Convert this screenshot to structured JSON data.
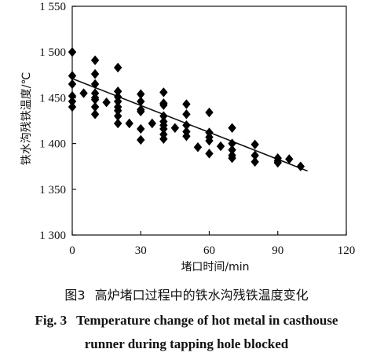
{
  "chart_data": {
    "type": "scatter",
    "xlabel": "堵口时间/min",
    "ylabel": "铁水沟残铁温度/℃",
    "xlim": [
      0,
      120
    ],
    "ylim": [
      1300,
      1550
    ],
    "xticks": [
      0,
      30,
      60,
      90,
      120
    ],
    "xtick_labels": [
      "0",
      "30",
      "60",
      "90",
      "120"
    ],
    "yticks": [
      1300,
      1350,
      1400,
      1450,
      1500,
      1550
    ],
    "ytick_labels": [
      "1 300",
      "1 350",
      "1 400",
      "1 450",
      "1 500",
      "1 550"
    ],
    "grid": false,
    "marker": "diamond",
    "points": [
      [
        0,
        1500
      ],
      [
        0,
        1474
      ],
      [
        0,
        1465
      ],
      [
        0,
        1452
      ],
      [
        0,
        1446
      ],
      [
        0,
        1440
      ],
      [
        5,
        1455
      ],
      [
        10,
        1491
      ],
      [
        10,
        1476
      ],
      [
        10,
        1465
      ],
      [
        10,
        1455
      ],
      [
        10,
        1450
      ],
      [
        10,
        1448
      ],
      [
        10,
        1440
      ],
      [
        10,
        1432
      ],
      [
        15,
        1445
      ],
      [
        20,
        1483
      ],
      [
        20,
        1457
      ],
      [
        20,
        1451
      ],
      [
        20,
        1446
      ],
      [
        20,
        1440
      ],
      [
        20,
        1436
      ],
      [
        20,
        1430
      ],
      [
        20,
        1422
      ],
      [
        25,
        1422
      ],
      [
        30,
        1454
      ],
      [
        30,
        1446
      ],
      [
        30,
        1437
      ],
      [
        30,
        1435
      ],
      [
        30,
        1416
      ],
      [
        30,
        1404
      ],
      [
        35,
        1422
      ],
      [
        40,
        1456
      ],
      [
        40,
        1444
      ],
      [
        40,
        1442
      ],
      [
        40,
        1430
      ],
      [
        40,
        1424
      ],
      [
        40,
        1420
      ],
      [
        40,
        1416
      ],
      [
        40,
        1410
      ],
      [
        40,
        1405
      ],
      [
        45,
        1417
      ],
      [
        50,
        1443
      ],
      [
        50,
        1432
      ],
      [
        50,
        1420
      ],
      [
        50,
        1413
      ],
      [
        50,
        1408
      ],
      [
        55,
        1396
      ],
      [
        60,
        1434
      ],
      [
        60,
        1412
      ],
      [
        60,
        1407
      ],
      [
        60,
        1403
      ],
      [
        60,
        1389
      ],
      [
        65,
        1397
      ],
      [
        70,
        1417
      ],
      [
        70,
        1400
      ],
      [
        70,
        1393
      ],
      [
        70,
        1387
      ],
      [
        70,
        1384
      ],
      [
        80,
        1399
      ],
      [
        80,
        1387
      ],
      [
        80,
        1380
      ],
      [
        90,
        1384
      ],
      [
        90,
        1381
      ],
      [
        90,
        1379
      ],
      [
        95,
        1383
      ],
      [
        100,
        1375
      ]
    ],
    "trendline": {
      "x": [
        0,
        103
      ],
      "y": [
        1471,
        1370
      ]
    }
  },
  "caption": {
    "cn_label": "图3",
    "cn_text": "高炉堵口过程中的铁水沟残铁温度变化",
    "en_label": "Fig. 3",
    "en_text_line1": "Temperature change of hot metal in casthouse",
    "en_text_line2": "runner during tapping hole blocked"
  }
}
